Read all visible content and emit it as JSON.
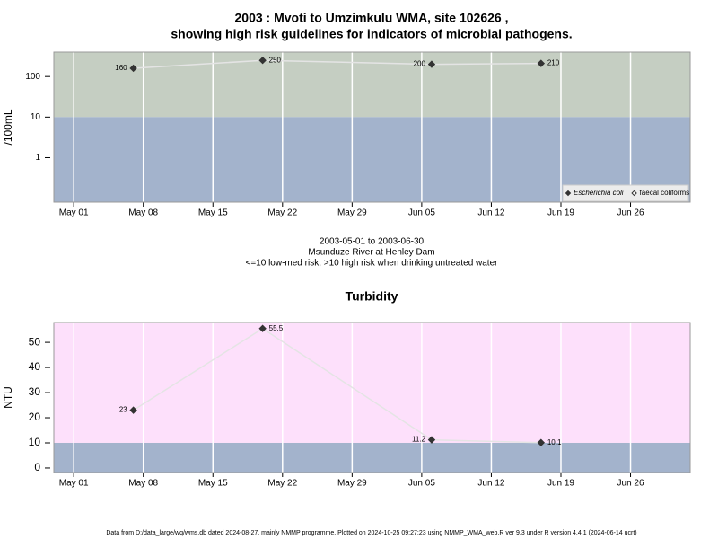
{
  "title": "2003 : Mvoti to Umzimkulu WMA, site 102626 ,",
  "subtitle": "showing high risk guidelines for indicators of microbial pathogens.",
  "caption": [
    "2003-05-01 to 2003-06-30",
    "Msunduze River at Henley Dam",
    "<=10 low-med risk; >10 high risk when drinking untreated water"
  ],
  "footer": "Data from D:/data_large/wq/wms.db dated 2024-08-27, mainly NMMP programme. Plotted on 2024-10-25 09:27:23 using NMMP_WMA_web.R ver 9.3 under R version 4.4.1 (2024-06-14 ucrt)",
  "chart_data": [
    {
      "type": "line",
      "ylabel": "/100mL",
      "log_scale": true,
      "threshold": 10,
      "band_colors": {
        "above": "#c5cec2",
        "below": "#a3b3cc"
      },
      "line_color": "#e4e4e4",
      "grid": true,
      "x": [
        "2003-05-07",
        "2003-05-20",
        "2003-06-06",
        "2003-06-17"
      ],
      "xlim": [
        "2003-04-29",
        "2003-07-02"
      ],
      "xticks": [
        {
          "value": "2003-05-01",
          "label": "May 01"
        },
        {
          "value": "2003-05-08",
          "label": "May 08"
        },
        {
          "value": "2003-05-15",
          "label": "May 15"
        },
        {
          "value": "2003-05-22",
          "label": "May 22"
        },
        {
          "value": "2003-05-29",
          "label": "May 29"
        },
        {
          "value": "2003-06-05",
          "label": "Jun 05"
        },
        {
          "value": "2003-06-12",
          "label": "Jun 12"
        },
        {
          "value": "2003-06-19",
          "label": "Jun 19"
        },
        {
          "value": "2003-06-26",
          "label": "Jun 26"
        }
      ],
      "ylim": [
        0.08,
        400
      ],
      "yticks": [
        1,
        10,
        100
      ],
      "legend": "bottom-right",
      "series": [
        {
          "name": "Escherichia coli",
          "color": "#333333",
          "values": [
            160,
            250,
            200,
            210
          ]
        },
        {
          "name": "faecal coliforms",
          "color": "#ffffff",
          "values": [
            null,
            null,
            null,
            null
          ]
        }
      ]
    },
    {
      "type": "line",
      "title": "Turbidity",
      "ylabel": "NTU",
      "log_scale": false,
      "threshold": 10,
      "band_colors": {
        "above": "#fde0fb",
        "below": "#a3b3cc"
      },
      "line_color": "#e4e4e4",
      "grid": true,
      "x": [
        "2003-05-07",
        "2003-05-20",
        "2003-06-06",
        "2003-06-17"
      ],
      "xlim": [
        "2003-04-29",
        "2003-07-02"
      ],
      "xticks": [
        {
          "value": "2003-05-01",
          "label": "May 01"
        },
        {
          "value": "2003-05-08",
          "label": "May 08"
        },
        {
          "value": "2003-05-15",
          "label": "May 15"
        },
        {
          "value": "2003-05-22",
          "label": "May 22"
        },
        {
          "value": "2003-05-29",
          "label": "May 29"
        },
        {
          "value": "2003-06-05",
          "label": "Jun 05"
        },
        {
          "value": "2003-06-12",
          "label": "Jun 12"
        },
        {
          "value": "2003-06-19",
          "label": "Jun 19"
        },
        {
          "value": "2003-06-26",
          "label": "Jun 26"
        }
      ],
      "ylim": [
        -1.8,
        57.9
      ],
      "yticks": [
        0,
        10,
        20,
        30,
        40,
        50
      ],
      "series": [
        {
          "name": "Turbidity",
          "color": "#333333",
          "values": [
            23,
            55.5,
            11.2,
            10.1
          ]
        }
      ]
    }
  ]
}
